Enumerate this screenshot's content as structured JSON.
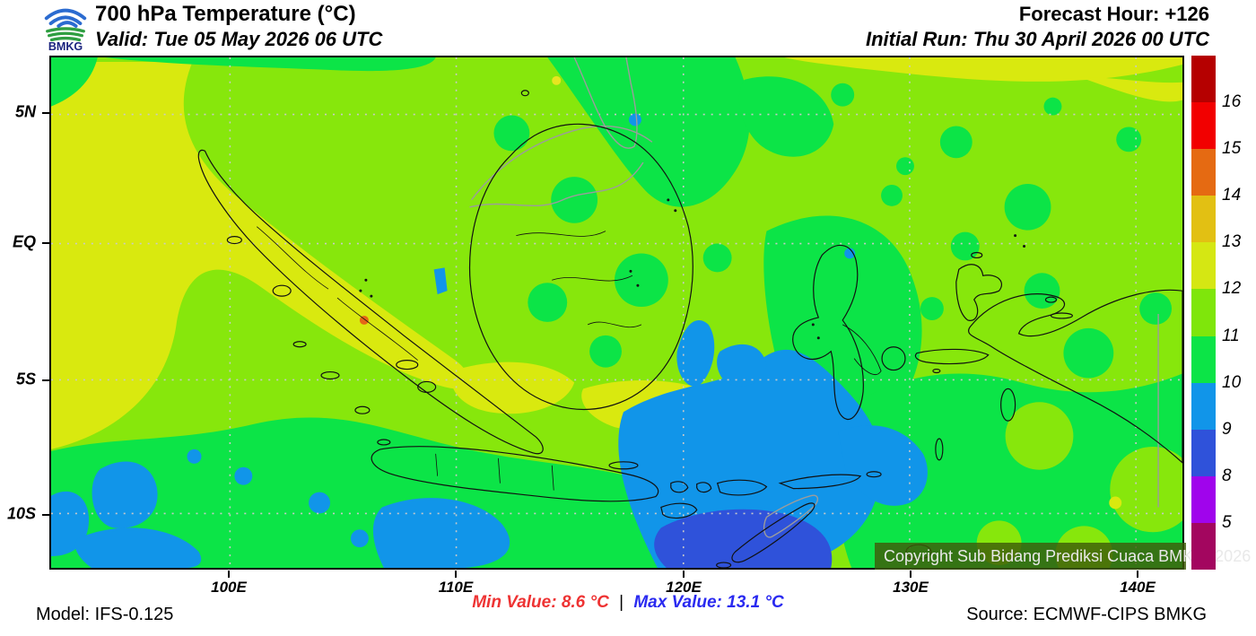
{
  "header": {
    "logo_text": "BMKG",
    "title": "700 hPa Temperature (°C)",
    "valid": "Valid: Tue 05 May 2026 06 UTC",
    "forecast_hour": "Forecast Hour: +126",
    "initial_run": "Initial Run: Thu 30 April 2026 00 UTC"
  },
  "map": {
    "copyright": "Copyright Sub Bidang Prediksi Cuaca BMKG, 2026",
    "x_tick_labels": [
      "100E",
      "110E",
      "120E",
      "130E",
      "140E"
    ],
    "y_tick_labels": [
      "5N",
      "EQ",
      "5S",
      "10S"
    ]
  },
  "colorbar": {
    "segment_colors_top_to_bottom": [
      "#b50000",
      "#f20000",
      "#e56a12",
      "#e2c013",
      "#d5e713",
      "#7fe60b",
      "#0ce447",
      "#1195e9",
      "#2f52da",
      "#a004ec",
      "#a3065f"
    ],
    "labels_top_to_bottom": [
      "16",
      "15",
      "14",
      "13",
      "12",
      "11",
      "10",
      "9",
      "8",
      "5"
    ]
  },
  "footer": {
    "model": "Model: IFS-0.125",
    "min_value": "Min Value: 8.6 °C",
    "separator": "|",
    "max_value": "Max Value: 13.1 °C",
    "source": "Source: ECMWF-CIPS BMKG",
    "min_color": "#ee3333",
    "max_color": "#2a2af0"
  },
  "chart_data": {
    "type": "heatmap",
    "title": "700 hPa Temperature (°C)",
    "region": "Indonesia (approx. 92E-142E, 7N-12S)",
    "x_axis": {
      "ticks": [
        "100E",
        "110E",
        "120E",
        "130E",
        "140E"
      ]
    },
    "y_axis": {
      "ticks": [
        "5N",
        "EQ",
        "5S",
        "10S"
      ]
    },
    "scale_levels_c": [
      16,
      15,
      14,
      13,
      12,
      11,
      10,
      9,
      8,
      5
    ],
    "scale_colors": [
      "#b50000",
      "#f20000",
      "#e56a12",
      "#e2c013",
      "#d5e713",
      "#7fe60b",
      "#0ce447",
      "#1195e9",
      "#2f52da",
      "#a004ec",
      "#a3065f"
    ],
    "min_value_c": 8.6,
    "max_value_c": 13.1,
    "pattern_summary": "Mostly 10-12 C across the domain; 12-13 C band west of Sumatra and over the Java Sea; 9-10 C pool around Timor and south of Nusa Tenggara with an 8-9 C core; scattered 9-10 C patches in the far southwest"
  }
}
